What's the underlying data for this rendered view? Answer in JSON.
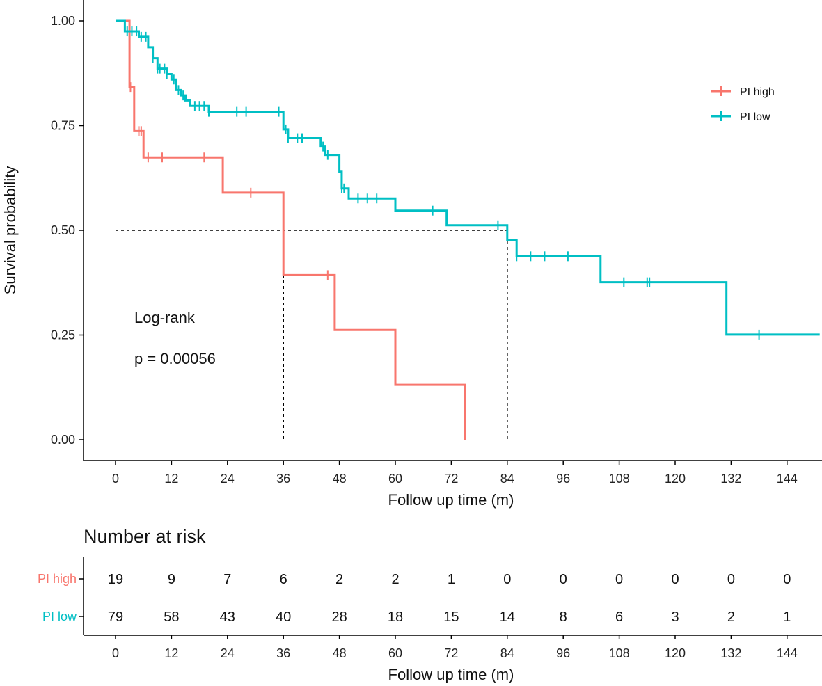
{
  "chart_data": {
    "type": "line",
    "kind": "kaplan-meier",
    "xlabel": "Follow up time (m)",
    "ylabel": "Survival probability",
    "xlim": [
      -3,
      151
    ],
    "ylim": [
      0,
      1
    ],
    "x_ticks": [
      0,
      12,
      24,
      36,
      48,
      60,
      72,
      84,
      96,
      108,
      120,
      132,
      144
    ],
    "y_ticks": [
      {
        "value": 0.0,
        "label": "0.00"
      },
      {
        "value": 0.25,
        "label": "0.25"
      },
      {
        "value": 0.5,
        "label": "0.50"
      },
      {
        "value": 0.75,
        "label": "0.75"
      },
      {
        "value": 1.0,
        "label": "1.00"
      }
    ],
    "legend": {
      "position": "top-right",
      "entries": [
        "PI high",
        "PI low"
      ]
    },
    "series": [
      {
        "name": "PI high",
        "color": "#F8766D",
        "steps": [
          [
            0,
            1.0
          ],
          [
            3,
            0.842
          ],
          [
            4,
            0.737
          ],
          [
            6,
            0.674
          ],
          [
            23,
            0.59
          ],
          [
            36,
            0.393
          ],
          [
            47,
            0.262
          ],
          [
            60,
            0.131
          ],
          [
            75,
            0.0
          ]
        ],
        "end_x": 75,
        "censor_x": [
          3.2,
          5,
          5.5,
          7,
          10,
          19,
          29,
          45.5
        ]
      },
      {
        "name": "PI low",
        "color": "#00BFC4",
        "steps": [
          [
            0,
            1.0
          ],
          [
            2,
            0.975
          ],
          [
            5,
            0.962
          ],
          [
            7,
            0.937
          ],
          [
            8,
            0.911
          ],
          [
            9,
            0.886
          ],
          [
            11,
            0.873
          ],
          [
            12,
            0.86
          ],
          [
            13,
            0.835
          ],
          [
            14,
            0.822
          ],
          [
            15,
            0.81
          ],
          [
            16,
            0.797
          ],
          [
            20,
            0.783
          ],
          [
            36,
            0.741
          ],
          [
            37,
            0.72
          ],
          [
            44,
            0.7
          ],
          [
            45,
            0.68
          ],
          [
            48,
            0.64
          ],
          [
            48.5,
            0.6
          ],
          [
            50,
            0.576
          ],
          [
            60,
            0.547
          ],
          [
            71,
            0.512
          ],
          [
            84,
            0.476
          ],
          [
            86,
            0.438
          ],
          [
            104,
            0.376
          ],
          [
            131,
            0.251
          ]
        ],
        "end_x": 151,
        "censor_x": [
          2.5,
          3.5,
          4.5,
          5.5,
          6.5,
          8,
          9,
          9.5,
          10.5,
          11,
          12.5,
          13.5,
          14.5,
          17,
          18,
          19,
          20,
          26,
          28,
          35,
          36.5,
          37,
          39,
          40,
          44.5,
          45.5,
          48.5,
          49,
          52,
          54,
          56,
          68,
          82,
          86,
          89,
          92,
          97,
          109,
          114,
          114.5,
          138
        ]
      }
    ],
    "median_survival": [
      {
        "series": "PI high",
        "x": 36
      },
      {
        "series": "PI low",
        "x": 84
      }
    ],
    "annotations": {
      "test": "Log-rank",
      "pvalue": "p = 0.00056"
    },
    "risk_table": {
      "title": "Number at risk",
      "xlabel": "Follow up time (m)",
      "times": [
        0,
        12,
        24,
        36,
        48,
        60,
        72,
        84,
        96,
        108,
        120,
        132,
        144
      ],
      "rows": [
        {
          "label": "PI high",
          "color": "#F8766D",
          "values": [
            19,
            9,
            7,
            6,
            2,
            2,
            1,
            0,
            0,
            0,
            0,
            0,
            0
          ]
        },
        {
          "label": "PI low",
          "color": "#00BFC4",
          "values": [
            79,
            58,
            43,
            40,
            28,
            18,
            15,
            14,
            8,
            6,
            3,
            2,
            1
          ]
        }
      ]
    }
  }
}
